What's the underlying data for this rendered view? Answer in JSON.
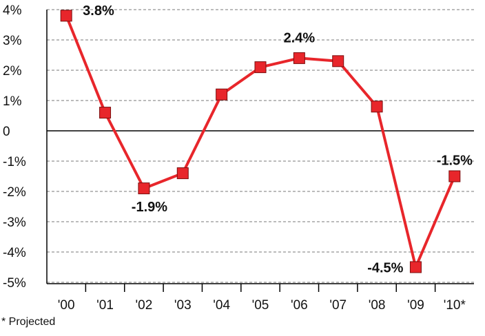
{
  "chart_data": {
    "type": "line",
    "categories": [
      "'00",
      "'01",
      "'02",
      "'03",
      "'04",
      "'05",
      "'06",
      "'07",
      "'08",
      "'09",
      "'10*"
    ],
    "series": [
      {
        "color": "#e8262b",
        "values": [
          3.8,
          0.6,
          -1.9,
          -1.4,
          1.2,
          2.1,
          2.4,
          2.3,
          0.8,
          -4.5,
          -1.5
        ],
        "value_labels": [
          "3.8%",
          null,
          "-1.9%",
          null,
          null,
          null,
          "2.4%",
          null,
          null,
          "-4.5%",
          "-1.5%"
        ]
      }
    ],
    "ylim": [
      -5,
      4
    ],
    "yticks": [
      {
        "value": 4,
        "label": "4%"
      },
      {
        "value": 3,
        "label": "3%"
      },
      {
        "value": 2,
        "label": "2%"
      },
      {
        "value": 1,
        "label": "1%"
      },
      0,
      {
        "value": -1,
        "label": "-1%"
      },
      {
        "value": -2,
        "label": "-2%"
      },
      {
        "value": -3,
        "label": "-3%"
      },
      {
        "value": -4,
        "label": "-4%"
      },
      {
        "value": -5,
        "label": "-5%"
      }
    ],
    "grid": true,
    "footnote": "* Projected"
  }
}
